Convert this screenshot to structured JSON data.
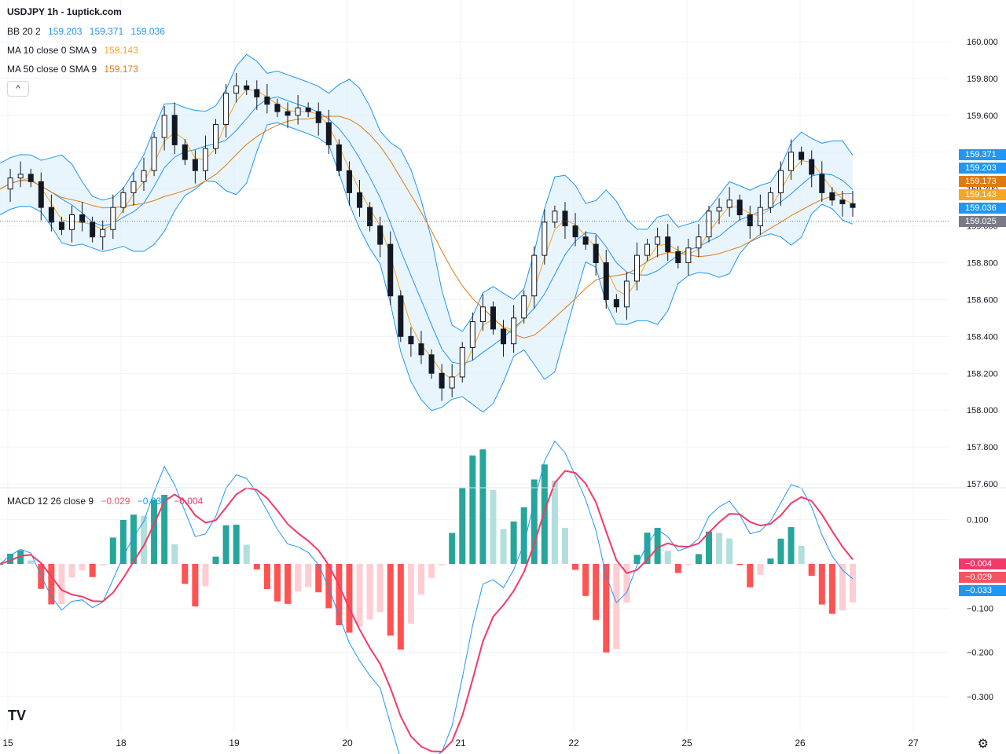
{
  "header": {
    "title": "USDJPY 1h - 1uptick.com"
  },
  "legend": {
    "bb": {
      "label": "BB 20 2",
      "v1": "159.203",
      "v2": "159.371",
      "v3": "159.036"
    },
    "ma10": {
      "label": "MA 10 close 0 SMA 9",
      "value": "159.143"
    },
    "ma50": {
      "label": "MA 50 close 0 SMA 9",
      "value": "159.173"
    },
    "collapse_icon": "chevron-up-icon"
  },
  "macd_legend": {
    "label": "MACD 12 26 close 9",
    "hist": "−0.029",
    "macd": "−0.033",
    "signal": "−0.004"
  },
  "price_tags": [
    {
      "value": "159.371",
      "color": "#2196f3"
    },
    {
      "value": "159.203",
      "color": "#2196f3"
    },
    {
      "value": "159.173",
      "color": "#e07a10"
    },
    {
      "value": "159.143",
      "color": "#f5a623"
    },
    {
      "value": "159.036",
      "color": "#2196f3"
    },
    {
      "value": "159.025",
      "color": "#787b86"
    }
  ],
  "macd_tags": [
    {
      "value": "−0.004",
      "color": "#f23a6a"
    },
    {
      "value": "−0.029",
      "color": "#f7525f"
    },
    {
      "value": "−0.033",
      "color": "#2196f3"
    }
  ],
  "colors": {
    "bb_band": "#2196f3",
    "bb_fill": "#dbeefc",
    "ma10": "#f5a623",
    "ma50": "#e07a10",
    "macd_line": "#2196f3",
    "signal_line": "#f23a6a",
    "hist_up_strong": "#26a69a",
    "hist_up_weak": "#b2dfdb",
    "hist_down_strong": "#ff5252",
    "hist_down_weak": "#ffcdd2"
  },
  "chart_data": {
    "type": "line",
    "symbol": "USDJPY",
    "timeframe": "1h",
    "x_ticks": [
      "15",
      "18",
      "19",
      "20",
      "21",
      "22",
      "25",
      "26",
      "27"
    ],
    "price_axis": {
      "ticks": [
        "160.000",
        "159.800",
        "159.600",
        "159.400",
        "159.200",
        "159.000",
        "158.800",
        "158.600",
        "158.400",
        "158.200",
        "158.000",
        "157.800",
        "157.600"
      ],
      "ylim": [
        157.6,
        160.0
      ]
    },
    "macd_axis": {
      "ticks": [
        "0.100",
        "−0.100",
        "−0.200",
        "−0.300"
      ],
      "ylim": [
        -0.33,
        0.12
      ]
    },
    "last_price": 159.025,
    "close_series": [
      159.2,
      159.26,
      159.28,
      159.24,
      159.1,
      159.02,
      158.98,
      159.06,
      159.02,
      158.94,
      158.98,
      159.1,
      159.18,
      159.24,
      159.3,
      159.48,
      159.6,
      159.44,
      159.36,
      159.3,
      159.42,
      159.55,
      159.72,
      159.76,
      159.74,
      159.7,
      159.66,
      159.62,
      159.6,
      159.64,
      159.62,
      159.56,
      159.44,
      159.3,
      159.18,
      159.1,
      159.0,
      158.9,
      158.62,
      158.4,
      158.36,
      158.3,
      158.2,
      158.12,
      158.18,
      158.34,
      158.48,
      158.56,
      158.44,
      158.36,
      158.5,
      158.62,
      158.84,
      159.02,
      159.08,
      159.0,
      158.94,
      158.9,
      158.8,
      158.6,
      158.56,
      158.7,
      158.84,
      158.9,
      158.94,
      158.86,
      158.8,
      158.88,
      158.94,
      159.08,
      159.1,
      159.14,
      159.06,
      159.0,
      159.1,
      159.18,
      159.3,
      159.4,
      159.36,
      159.28,
      159.18,
      159.14,
      159.12,
      159.1
    ]
  }
}
